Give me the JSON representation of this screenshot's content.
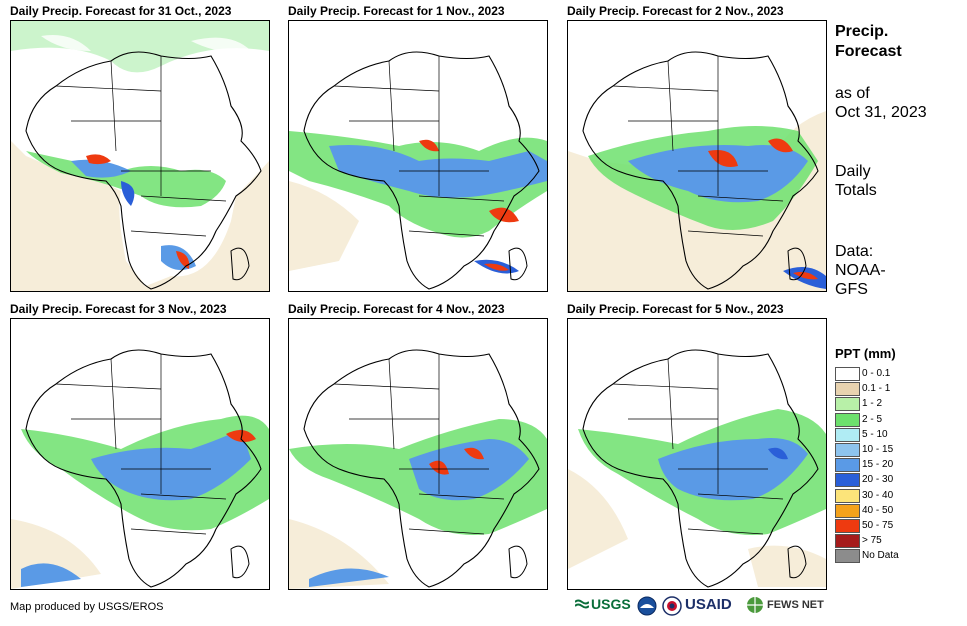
{
  "panels": [
    {
      "title": "Daily Precip. Forecast for 31 Oct., 2023"
    },
    {
      "title": "Daily Precip. Forecast for 1 Nov., 2023"
    },
    {
      "title": "Daily Precip. Forecast for 2 Nov., 2023"
    },
    {
      "title": "Daily Precip. Forecast for 3 Nov., 2023"
    },
    {
      "title": "Daily Precip. Forecast for 4 Nov., 2023"
    },
    {
      "title": "Daily Precip. Forecast for 5 Nov., 2023"
    }
  ],
  "sidebar": {
    "heading_line1": "Precip.",
    "heading_line2": "Forecast",
    "asof_line1": "as of",
    "asof_line2": "Oct 31, 2023",
    "totals_line1": "Daily",
    "totals_line2": "Totals",
    "data_line1": "Data:",
    "data_line2": "NOAA-",
    "data_line3": "GFS"
  },
  "legend": {
    "title": "PPT (mm)",
    "items": [
      {
        "label": "0 - 0.1",
        "color": "#ffffff"
      },
      {
        "label": "0.1 - 1",
        "color": "#e8d3b0"
      },
      {
        "label": "1 - 2",
        "color": "#b8f0a8"
      },
      {
        "label": "2 - 5",
        "color": "#6de06d"
      },
      {
        "label": "5 - 10",
        "color": "#b0ecf4"
      },
      {
        "label": "10 - 15",
        "color": "#8ec4ee"
      },
      {
        "label": "15 - 20",
        "color": "#5a9ae6"
      },
      {
        "label": "20 - 30",
        "color": "#2a5fd8"
      },
      {
        "label": "30 - 40",
        "color": "#fce47a"
      },
      {
        "label": "40 - 50",
        "color": "#f4a21c"
      },
      {
        "label": "50 - 75",
        "color": "#ee3a10"
      },
      {
        "label": "> 75",
        "color": "#a61c1c"
      },
      {
        "label": "No Data",
        "color": "#8c8c8c"
      }
    ]
  },
  "footer": {
    "credit": "Map produced by USGS/EROS",
    "logo_usgs": "USGS",
    "logo_usaid": "USAID",
    "logo_fewsnet": "FEWS NET"
  }
}
